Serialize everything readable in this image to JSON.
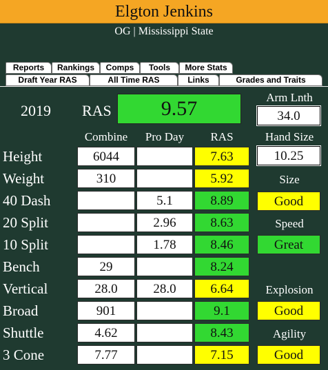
{
  "header": {
    "name": "Elgton Jenkins",
    "subtitle": "OG | Mississippi State"
  },
  "tabs_row1": [
    "Reports",
    "Rankings",
    "Comps",
    "Tools",
    "More Stats"
  ],
  "tabs_row2": [
    "Draft Year RAS",
    "All Time RAS",
    "Links",
    "Grades and Traits"
  ],
  "summary": {
    "year": "2019",
    "ras_label": "RAS",
    "ras_value": "9.57",
    "arm_label": "Arm Lnth",
    "arm_value": "34.0",
    "hand_label": "Hand Size",
    "hand_value": "10.25"
  },
  "columns": {
    "combine": "Combine",
    "proday": "Pro Day",
    "ras": "RAS"
  },
  "rows": [
    {
      "label": "Height",
      "combine": "6044",
      "proday": "",
      "ras": "7.63",
      "color": "#ffff00"
    },
    {
      "label": "Weight",
      "combine": "310",
      "proday": "",
      "ras": "5.92",
      "color": "#ffff00"
    },
    {
      "label": "40 Dash",
      "combine": "",
      "proday": "5.1",
      "ras": "8.89",
      "color": "#32d832"
    },
    {
      "label": "20 Split",
      "combine": "",
      "proday": "2.96",
      "ras": "8.63",
      "color": "#32d832"
    },
    {
      "label": "10 Split",
      "combine": "",
      "proday": "1.78",
      "ras": "8.46",
      "color": "#32d832"
    },
    {
      "label": "Bench",
      "combine": "29",
      "proday": "",
      "ras": "8.24",
      "color": "#32d832"
    },
    {
      "label": "Vertical",
      "combine": "28.0",
      "proday": "28.0",
      "ras": "6.64",
      "color": "#ffff00"
    },
    {
      "label": "Broad",
      "combine": "901",
      "proday": "",
      "ras": "9.1",
      "color": "#32d832"
    },
    {
      "label": "Shuttle",
      "combine": "4.62",
      "proday": "",
      "ras": "8.43",
      "color": "#32d832"
    },
    {
      "label": "3 Cone",
      "combine": "7.77",
      "proday": "",
      "ras": "7.15",
      "color": "#ffff00"
    }
  ],
  "grades": [
    {
      "label": "Size",
      "value": "Good",
      "color": "#ffff00"
    },
    {
      "label": "Speed",
      "value": "Great",
      "color": "#32d832"
    },
    {
      "label": "Explosion",
      "value": "Good",
      "color": "#ffff00"
    },
    {
      "label": "Agility",
      "value": "Good",
      "color": "#ffff00"
    }
  ]
}
